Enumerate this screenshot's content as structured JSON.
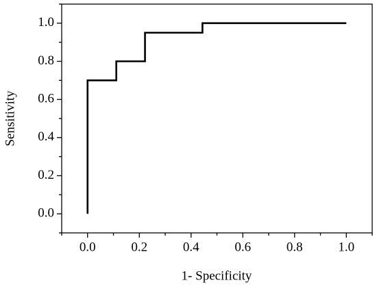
{
  "chart_data": {
    "type": "line",
    "xlabel": "1- Specificity",
    "ylabel": "Sensitivity",
    "x": [
      0,
      0,
      0.111,
      0.111,
      0.222,
      0.222,
      0.444,
      0.444,
      1.0
    ],
    "series": [
      {
        "color": "#000000",
        "values": [
          0,
          0.7,
          0.7,
          0.8,
          0.8,
          0.95,
          0.95,
          1.0,
          1.0
        ]
      }
    ],
    "xlim": [
      -0.1,
      1.1
    ],
    "ylim": [
      -0.1,
      1.1
    ],
    "xticks": [
      {
        "value": 0,
        "label": "0.0"
      },
      {
        "value": 0.2,
        "label": "0.2"
      },
      {
        "value": 0.4,
        "label": "0.4"
      },
      {
        "value": 0.6,
        "label": "0.6"
      },
      {
        "value": 0.8,
        "label": "0.8"
      },
      {
        "value": 1,
        "label": "1.0"
      }
    ],
    "yticks": [
      {
        "value": 0,
        "label": "0.0"
      },
      {
        "value": 0.2,
        "label": "0.2"
      },
      {
        "value": 0.4,
        "label": "0.4"
      },
      {
        "value": 0.6,
        "label": "0.6"
      },
      {
        "value": 0.8,
        "label": "0.8"
      },
      {
        "value": 1,
        "label": "1.0"
      }
    ],
    "xminorticks": [
      -0.1,
      0.1,
      0.3,
      0.5,
      0.7,
      0.9,
      1.1
    ],
    "yminorticks": [
      -0.1,
      0.1,
      0.3,
      0.5,
      0.7,
      0.9,
      1.1
    ],
    "grid": false
  }
}
